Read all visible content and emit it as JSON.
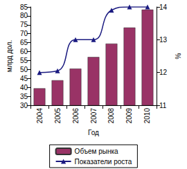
{
  "chart_data": {
    "type": "bar",
    "categories": [
      "2004",
      "2005",
      "2006",
      "2007",
      "2008",
      "2009",
      "2010"
    ],
    "x_label": "Год",
    "y_label": "млрд дол.",
    "y2_label": "%",
    "ylim": [
      30,
      85
    ],
    "yticks": [
      30,
      35,
      40,
      45,
      50,
      55,
      60,
      65,
      70,
      75,
      80,
      85
    ],
    "y2lim": [
      11,
      14
    ],
    "y2ticks": [
      11,
      12,
      13,
      14
    ],
    "grid": false,
    "legend": "bottom",
    "series": [
      {
        "name": "Объем рынка",
        "type": "bar",
        "color": "#993366",
        "values": [
          39.5,
          44,
          50.5,
          57,
          64.5,
          73.5,
          83.5
        ]
      },
      {
        "name": "Показатели роста",
        "type": "line",
        "axis": "y2",
        "color": "#1a1a80",
        "marker": "triangle",
        "line_style": "smooth",
        "values": [
          12.0,
          12.05,
          13.0,
          13.0,
          13.9,
          14.0,
          14.0
        ]
      }
    ]
  }
}
